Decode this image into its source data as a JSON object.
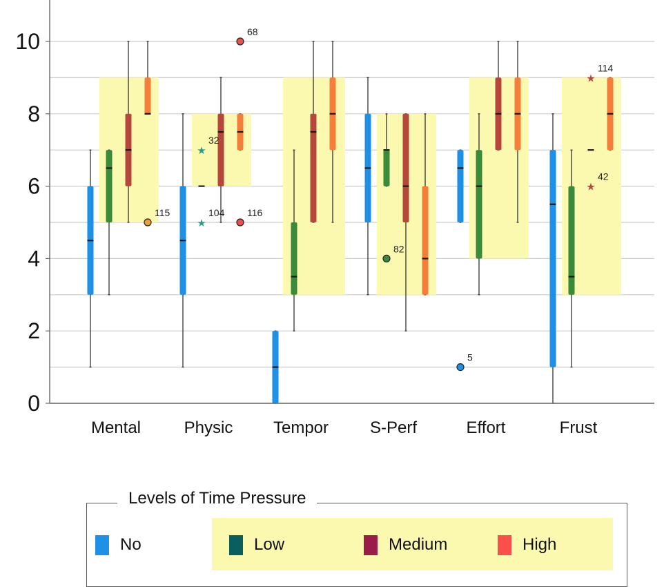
{
  "chart_data": {
    "type": "boxplot",
    "categories": [
      "Mental",
      "Physic",
      "Tempor",
      "S-Perf",
      "Effort",
      "Frust"
    ],
    "y_ticks": [
      "0",
      "2",
      "4",
      "6",
      "8",
      "10"
    ],
    "ylim": [
      0,
      11
    ],
    "grid": true,
    "series": [
      {
        "name": "No",
        "color": "#1e90e6",
        "boxes": [
          {
            "min": 1,
            "q1": 3,
            "median": 4.5,
            "q3": 6,
            "max": 7
          },
          {
            "min": 1,
            "q1": 3,
            "median": 4.5,
            "q3": 6,
            "max": 8
          },
          {
            "min": 0,
            "q1": 0,
            "median": 1,
            "q3": 2,
            "max": 2
          },
          {
            "min": 3,
            "q1": 5,
            "median": 6.5,
            "q3": 8,
            "max": 9
          },
          {
            "min": 5,
            "q1": 5,
            "median": 6.5,
            "q3": 7,
            "max": 7
          },
          {
            "min": 0,
            "q1": 1,
            "median": 5.5,
            "q3": 7,
            "max": 8
          }
        ]
      },
      {
        "name": "Low",
        "color": "#3a8a3a",
        "boxes": [
          {
            "min": 3,
            "q1": 5,
            "median": 6.5,
            "q3": 7,
            "max": 7
          },
          {
            "min": 6,
            "q1": 6,
            "median": 6,
            "q3": 6,
            "max": 6
          },
          {
            "min": 2,
            "q1": 3,
            "median": 3.5,
            "q3": 5,
            "max": 7
          },
          {
            "min": 6,
            "q1": 6,
            "median": 7,
            "q3": 7,
            "max": 8
          },
          {
            "min": 3,
            "q1": 4,
            "median": 6,
            "q3": 7,
            "max": 8
          },
          {
            "min": 1,
            "q1": 3,
            "median": 3.5,
            "q3": 6,
            "max": 7
          }
        ]
      },
      {
        "name": "Medium",
        "color": "#b5473b",
        "boxes": [
          {
            "min": 5,
            "q1": 6,
            "median": 7,
            "q3": 8,
            "max": 10
          },
          {
            "min": 5,
            "q1": 6,
            "median": 7.5,
            "q3": 8,
            "max": 9
          },
          {
            "min": 5,
            "q1": 5,
            "median": 7.5,
            "q3": 8,
            "max": 10
          },
          {
            "min": 2,
            "q1": 5,
            "median": 6,
            "q3": 8,
            "max": 8
          },
          {
            "min": 7,
            "q1": 7,
            "median": 8,
            "q3": 9,
            "max": 10
          },
          {
            "min": 7,
            "q1": 7,
            "median": 7,
            "q3": 7,
            "max": 7
          }
        ]
      },
      {
        "name": "High",
        "color": "#f57f3a",
        "boxes": [
          {
            "min": 8,
            "q1": 8,
            "median": 8,
            "q3": 9,
            "max": 10
          },
          {
            "min": 7,
            "q1": 7,
            "median": 7.5,
            "q3": 8,
            "max": 8
          },
          {
            "min": 5,
            "q1": 7,
            "median": 8,
            "q3": 9,
            "max": 10
          },
          {
            "min": 3,
            "q1": 3,
            "median": 4,
            "q3": 6,
            "max": 8
          },
          {
            "min": 5,
            "q1": 7,
            "median": 8,
            "q3": 9,
            "max": 10
          },
          {
            "min": 7,
            "q1": 7,
            "median": 8,
            "q3": 9,
            "max": 9
          }
        ]
      }
    ],
    "highlight_regions": [
      {
        "category": "Mental",
        "y0": 5,
        "y1": 9
      },
      {
        "category": "Physic",
        "y0": 6,
        "y1": 8
      },
      {
        "category": "Tempor",
        "y0": 3,
        "y1": 9
      },
      {
        "category": "S-Perf",
        "y0": 3,
        "y1": 8
      },
      {
        "category": "Effort",
        "y0": 4,
        "y1": 9
      },
      {
        "category": "Frust",
        "y0": 3,
        "y1": 9
      }
    ],
    "outliers": [
      {
        "category": "Mental",
        "series": "High",
        "y": 5,
        "label": "115",
        "marker": "circle"
      },
      {
        "category": "Physic",
        "series": "Low",
        "y": 7,
        "label": "32",
        "marker": "star"
      },
      {
        "category": "Physic",
        "series": "Low",
        "y": 5,
        "label": "104",
        "marker": "star"
      },
      {
        "category": "Physic",
        "series": "High",
        "y": 10,
        "label": "68",
        "marker": "circle"
      },
      {
        "category": "Physic",
        "series": "High",
        "y": 5,
        "label": "116",
        "marker": "circle"
      },
      {
        "category": "S-Perf",
        "series": "Low",
        "y": 4,
        "label": "82",
        "marker": "circle"
      },
      {
        "category": "Effort",
        "series": "No",
        "y": 1,
        "label": "5",
        "marker": "circle"
      },
      {
        "category": "Frust",
        "series": "Medium",
        "y": 9,
        "label": "114",
        "marker": "star"
      },
      {
        "category": "Frust",
        "series": "Medium",
        "y": 6,
        "label": "42",
        "marker": "star"
      }
    ],
    "colors": {
      "highlight": "#fbf9b0",
      "outlier_high": "#e8524a",
      "outlier_high_alt": "#f0a030",
      "outlier_low": "#3a8a3a",
      "outlier_low_star": "#2a9a8a",
      "outlier_no": "#1e90e6",
      "outlier_medium": "#b5473b"
    },
    "legend": {
      "title": "Levels of Time Pressure",
      "position": "bottom",
      "items": [
        {
          "label": "No",
          "color": "#1e90e6"
        },
        {
          "label": "Low",
          "color": "#0b5e5e"
        },
        {
          "label": "Medium",
          "color": "#9b1b4b"
        },
        {
          "label": "High",
          "color": "#f9504c"
        }
      ]
    }
  }
}
